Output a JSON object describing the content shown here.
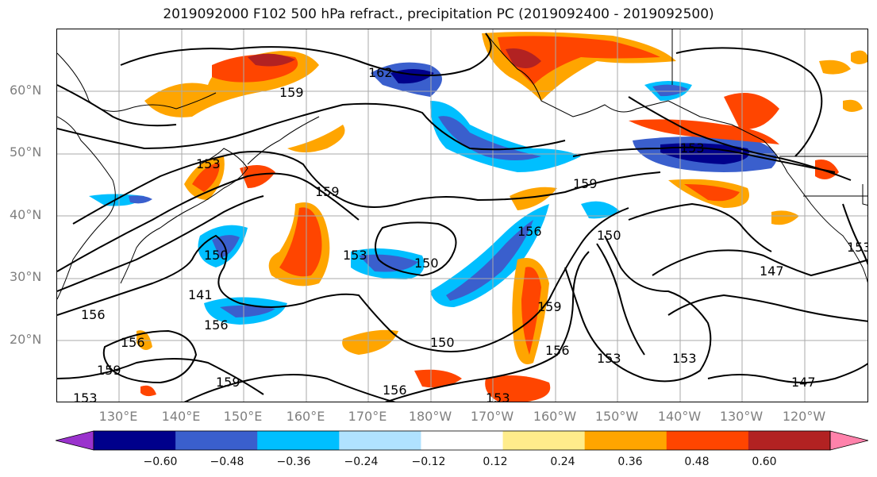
{
  "title": "2019092000 F102 500 hPa refract., precipitation PC (2019092400 - 2019092500)",
  "lat_labels": [
    "60°N",
    "50°N",
    "40°N",
    "30°N",
    "20°N"
  ],
  "lon_labels": [
    "130°E",
    "140°E",
    "150°E",
    "160°E",
    "170°E",
    "180°W",
    "170°W",
    "160°W",
    "150°W",
    "140°W",
    "130°W",
    "120°W"
  ],
  "contour_labels": [
    "162",
    "159",
    "153",
    "159",
    "153",
    "150",
    "150",
    "159",
    "156",
    "150",
    "147",
    "153",
    "156",
    "156",
    "156",
    "150",
    "159",
    "159",
    "156",
    "153",
    "153",
    "153",
    "159",
    "141",
    "156",
    "153",
    "147",
    "153"
  ],
  "colorbar": {
    "ticks": [
      "−0.60",
      "−0.48",
      "−0.36",
      "−0.24",
      "−0.12",
      "0.12",
      "0.24",
      "0.36",
      "0.48",
      "0.60"
    ],
    "colors": [
      "#9a32cd",
      "#00008b",
      "#3a5fcd",
      "#00bfff",
      "#b0e2ff",
      "#ffffff",
      "#ffec8b",
      "#ffa500",
      "#ff4500",
      "#b22222",
      "#ff82ab"
    ]
  },
  "palette": {
    "frame": "#000000",
    "grid": "#aaaaaa",
    "coast": "#000000",
    "contour": "#000000",
    "axis_text": "#7f7f7f"
  }
}
